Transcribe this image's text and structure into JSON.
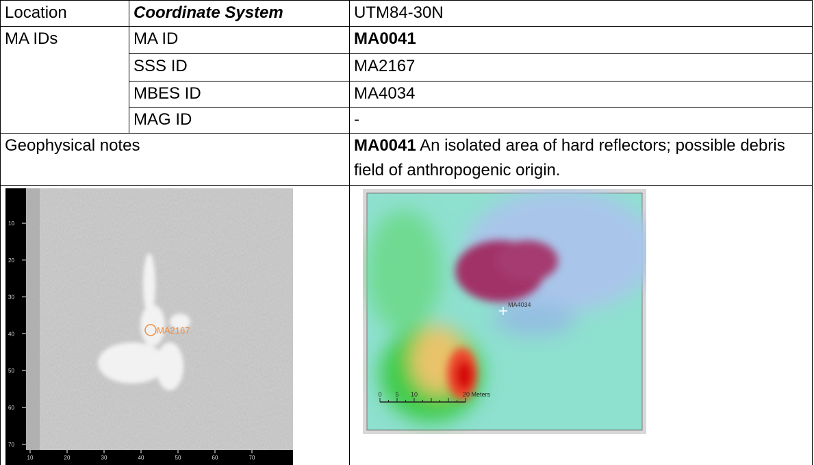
{
  "location": {
    "label": "Location",
    "key": "Coordinate System",
    "value": "UTM84-30N"
  },
  "ma_ids": {
    "label": "MA IDs",
    "items": [
      {
        "key": "MA ID",
        "value": "MA0041"
      },
      {
        "key": "SSS ID",
        "value": "MA2167"
      },
      {
        "key": "MBES ID",
        "value": "MA4034"
      },
      {
        "key": "MAG ID",
        "value": "-"
      }
    ]
  },
  "geophysical_notes": {
    "label": "Geophysical notes",
    "id": "MA0041",
    "text": "An isolated area of hard reflectors; possible debris field of anthropogenic origin."
  },
  "sss_image": {
    "target_label": "MA2167",
    "yticks": [
      10,
      20,
      30,
      40,
      50,
      60,
      70
    ],
    "xticks": [
      10,
      20,
      30,
      40,
      50,
      60,
      70
    ]
  },
  "mbes_image": {
    "target_label": "MA4034",
    "scale_ticks": [
      0,
      5,
      10
    ],
    "scale_end": "20 Meters"
  }
}
